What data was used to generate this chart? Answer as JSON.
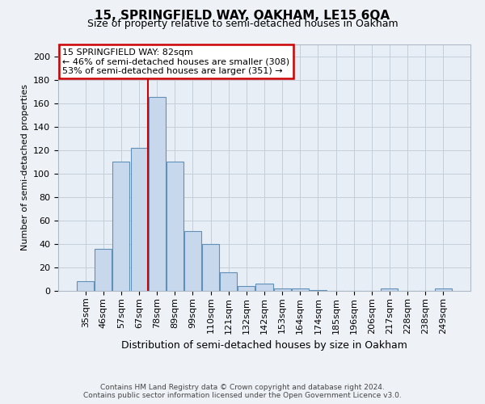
{
  "title": "15, SPRINGFIELD WAY, OAKHAM, LE15 6QA",
  "subtitle": "Size of property relative to semi-detached houses in Oakham",
  "xlabel": "Distribution of semi-detached houses by size in Oakham",
  "ylabel": "Number of semi-detached properties",
  "categories": [
    "35sqm",
    "46sqm",
    "57sqm",
    "67sqm",
    "78sqm",
    "89sqm",
    "99sqm",
    "110sqm",
    "121sqm",
    "132sqm",
    "142sqm",
    "153sqm",
    "164sqm",
    "174sqm",
    "185sqm",
    "196sqm",
    "206sqm",
    "217sqm",
    "228sqm",
    "238sqm",
    "249sqm"
  ],
  "values": [
    8,
    36,
    110,
    122,
    165,
    110,
    51,
    40,
    16,
    4,
    6,
    2,
    2,
    1,
    0,
    0,
    0,
    2,
    0,
    0,
    2
  ],
  "bar_color": "#c8d8ec",
  "bar_edge_color": "#6090b8",
  "highlight_bar_index": 4,
  "highlight_line_color": "#cc0000",
  "annotation_line1": "15 SPRINGFIELD WAY: 82sqm",
  "annotation_line2": "← 46% of semi-detached houses are smaller (308)",
  "annotation_line3": "53% of semi-detached houses are larger (351) →",
  "annotation_box_edge_color": "#cc0000",
  "ylim": [
    0,
    210
  ],
  "yticks": [
    0,
    20,
    40,
    60,
    80,
    100,
    120,
    140,
    160,
    180,
    200
  ],
  "footer_line1": "Contains HM Land Registry data © Crown copyright and database right 2024.",
  "footer_line2": "Contains public sector information licensed under the Open Government Licence v3.0.",
  "bg_color": "#eef2f7",
  "plot_bg_color": "#e8eef5",
  "grid_color": "#c5cfd8",
  "title_fontsize": 11,
  "subtitle_fontsize": 9,
  "xlabel_fontsize": 9,
  "ylabel_fontsize": 8,
  "tick_fontsize": 8,
  "annot_fontsize": 8,
  "footer_fontsize": 6.5
}
